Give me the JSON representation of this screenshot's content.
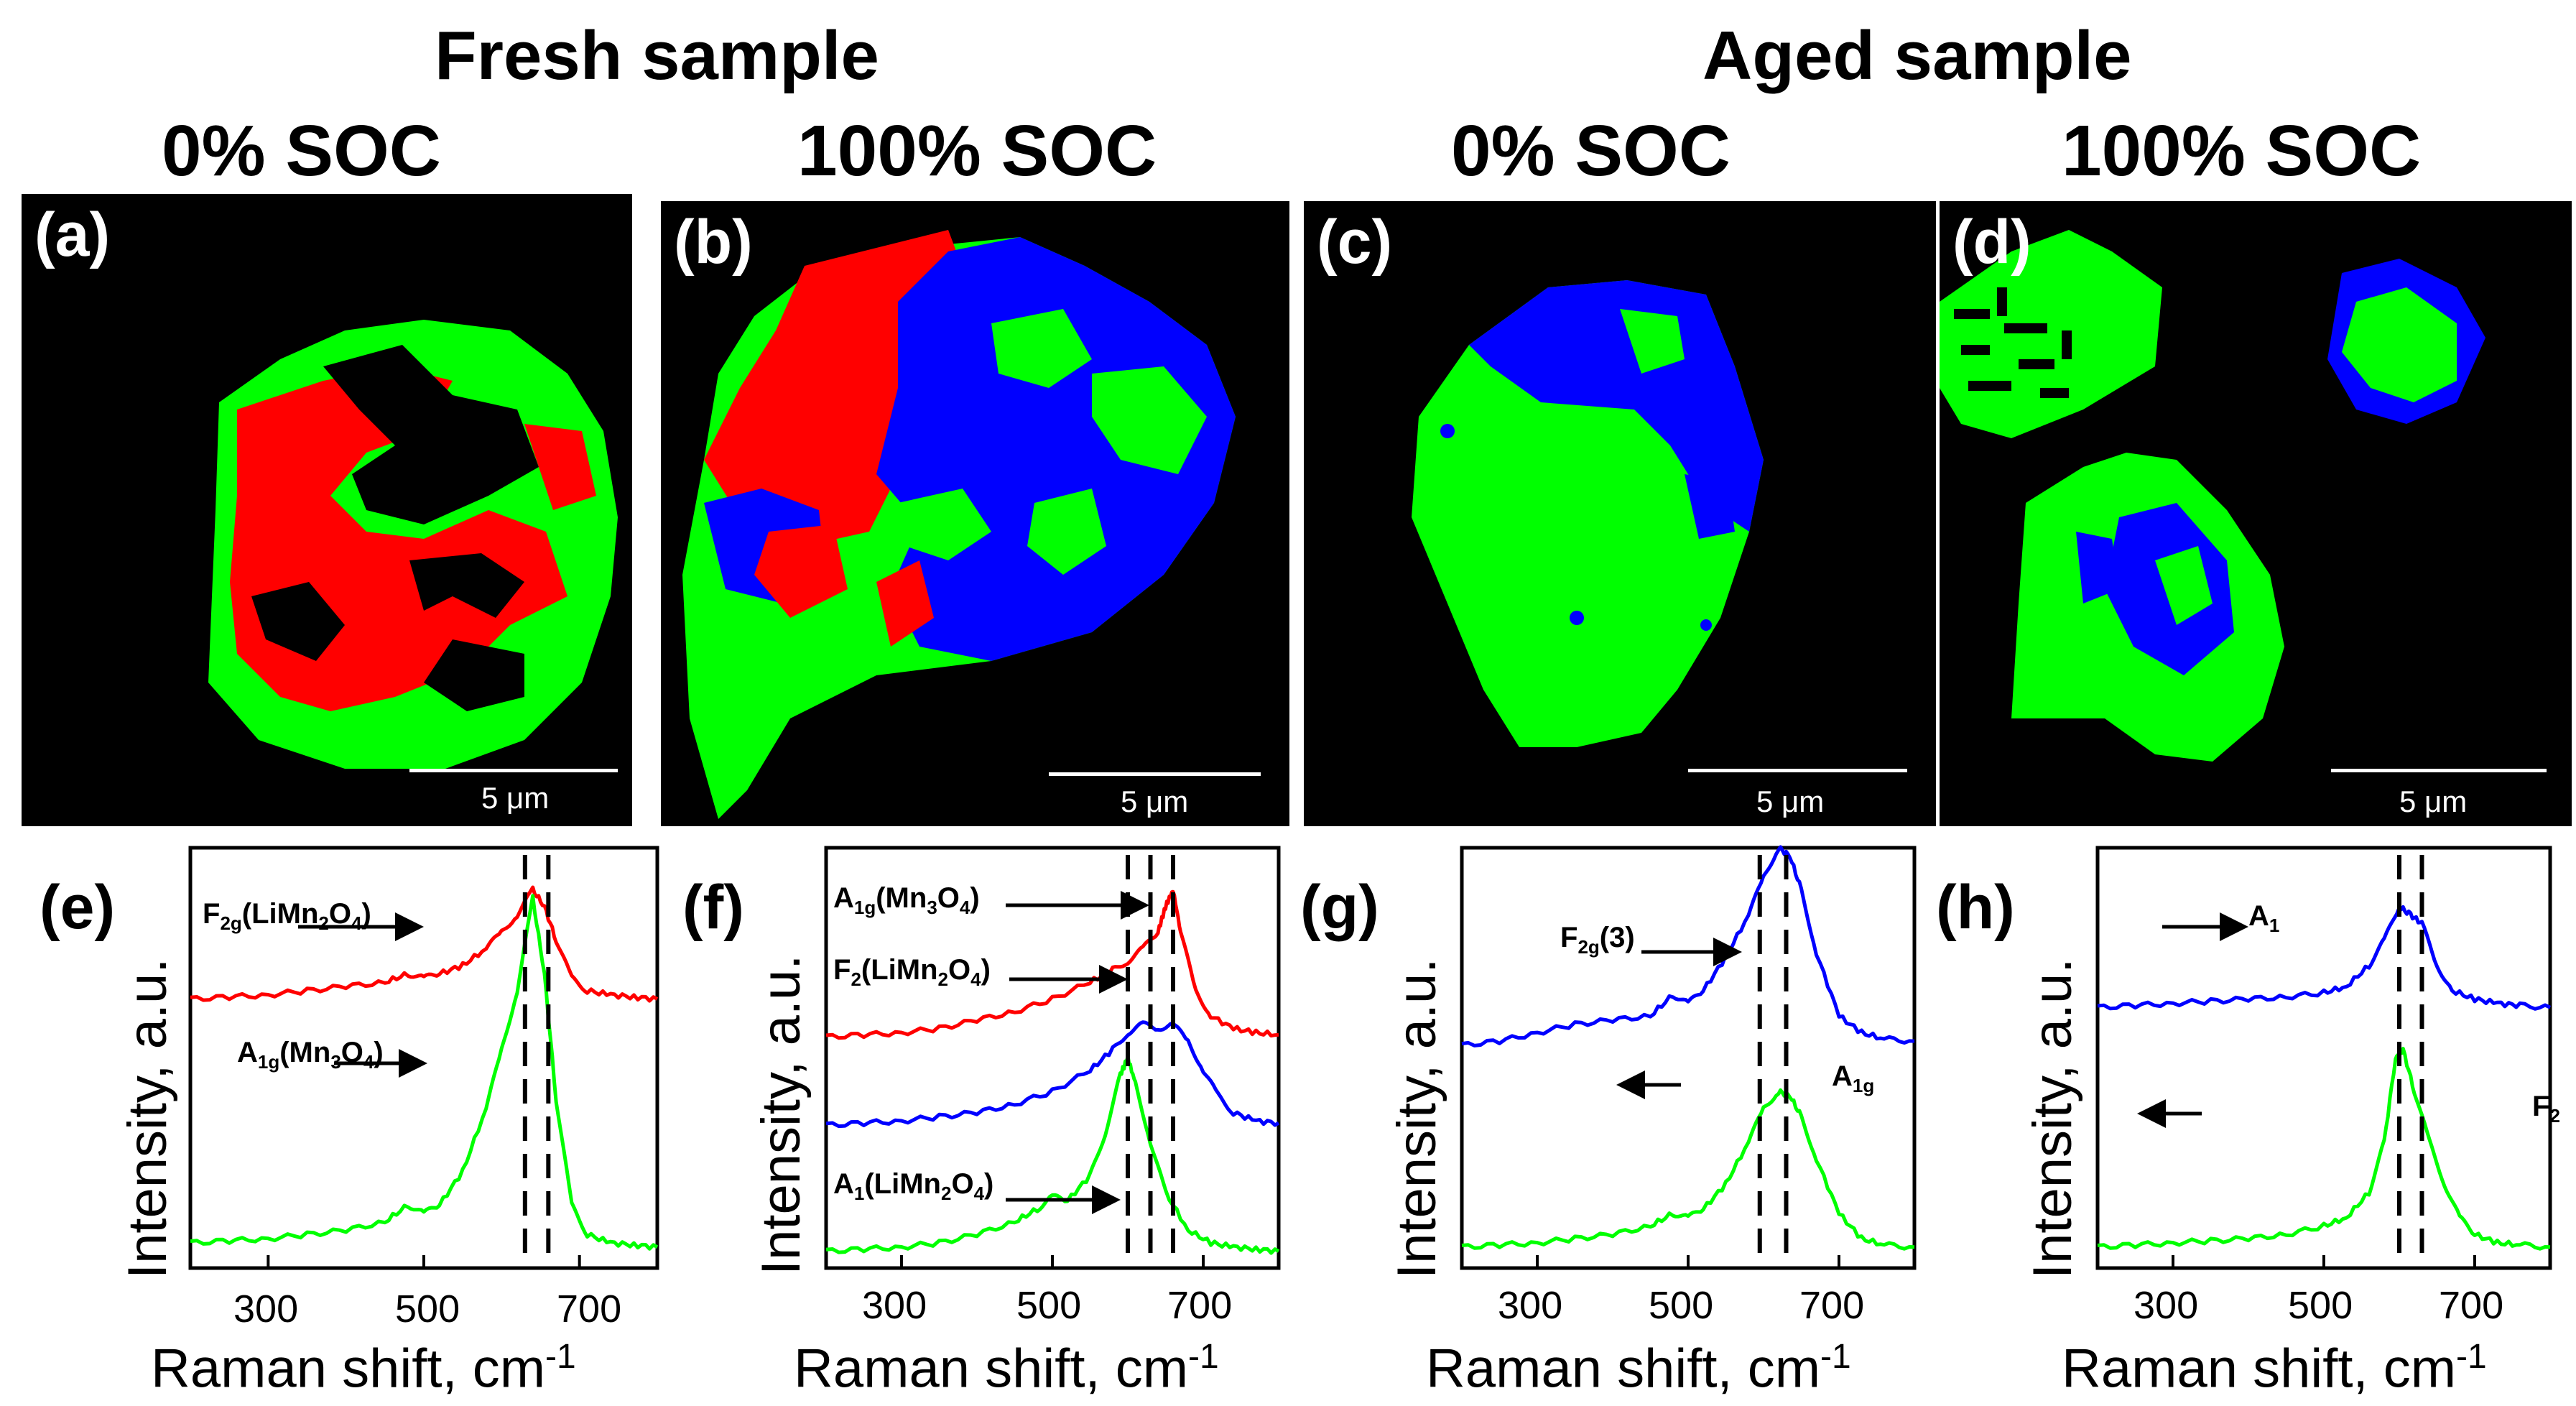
{
  "figure": {
    "fresh_title": "Fresh sample",
    "aged_title": "Aged sample",
    "panels_top": [
      {
        "label": "(a)",
        "soc": "0% SOC",
        "scale": "5 μm"
      },
      {
        "label": "(b)",
        "soc": "100% SOC",
        "scale": "5 μm"
      },
      {
        "label": "(c)",
        "soc": "0% SOC",
        "scale": "5 μm"
      },
      {
        "label": "(d)",
        "soc": "100% SOC",
        "scale": "5 μm"
      }
    ],
    "panels_bottom": [
      {
        "label": "(e)",
        "ylabel": "Intensity, a.u.",
        "xlabel": "Raman shift, cm",
        "xlabel_sup": "-1",
        "ticks": [
          "300",
          "500",
          "700"
        ]
      },
      {
        "label": "(f)",
        "ylabel": "Intensity, a.u.",
        "xlabel": "Raman shift, cm",
        "xlabel_sup": "-1",
        "ticks": [
          "300",
          "500",
          "700"
        ]
      },
      {
        "label": "(g)",
        "ylabel": "Intensity, a.u.",
        "xlabel": "Raman shift, cm",
        "xlabel_sup": "-1",
        "ticks": [
          "300",
          "500",
          "700"
        ]
      },
      {
        "label": "(h)",
        "ylabel": "Intensity, a.u.",
        "xlabel": "Raman shift, cm",
        "xlabel_sup": "-1",
        "ticks": [
          "300",
          "500",
          "700"
        ]
      }
    ],
    "annotations": {
      "e1": {
        "main": "F",
        "sub": "2g",
        "rest": "(LiMn",
        "sub2": "2",
        "rest2": "O",
        "sub3": "4",
        "rest3": ")"
      },
      "e2": {
        "main": "A",
        "sub": "1g",
        "rest": "(Mn",
        "sub2": "3",
        "rest2": "O",
        "sub3": "4",
        "rest3": ")"
      },
      "f1": {
        "main": "A",
        "sub": "1g",
        "rest": "(Mn",
        "sub2": "3",
        "rest2": "O",
        "sub3": "4",
        "rest3": ")"
      },
      "f2": {
        "main": "F",
        "sub": "2",
        "rest": "(LiMn",
        "sub2": "2",
        "rest2": "O",
        "sub3": "4",
        "rest3": ")"
      },
      "f3": {
        "main": "A",
        "sub": "1",
        "rest": "(LiMn",
        "sub2": "2",
        "rest2": "O",
        "sub3": "4",
        "rest3": ")"
      },
      "g1": {
        "main": "F",
        "sub": "2g",
        "rest": "(3)",
        "sub2": "",
        "rest2": "",
        "sub3": "",
        "rest3": ""
      },
      "g2": {
        "main": "A",
        "sub": "1g",
        "rest": "",
        "sub2": "",
        "rest2": "",
        "sub3": "",
        "rest3": ""
      },
      "h1": {
        "main": "A",
        "sub": "1",
        "rest": "",
        "sub2": "",
        "rest2": "",
        "sub3": "",
        "rest3": ""
      },
      "h2": {
        "main": "F",
        "sub": "2",
        "rest": "",
        "sub2": "",
        "rest2": "",
        "sub3": "",
        "rest3": ""
      }
    },
    "colors": {
      "red": "#ff0000",
      "green": "#00ff00",
      "blue": "#0000ff",
      "black": "#000000"
    }
  },
  "chart_data": [
    {
      "type": "line",
      "panel": "(e)",
      "xlabel": "Raman shift, cm-1",
      "ylabel": "Intensity, a.u.",
      "xlim": [
        200,
        800
      ],
      "series": [
        {
          "name": "red",
          "color": "#ff0000",
          "x": [
            200,
            250,
            300,
            350,
            400,
            450,
            480,
            500,
            520,
            550,
            580,
            600,
            620,
            640,
            655,
            670,
            690,
            710,
            740,
            770,
            800
          ],
          "y": [
            0.64,
            0.645,
            0.65,
            0.66,
            0.67,
            0.68,
            0.7,
            0.69,
            0.7,
            0.72,
            0.76,
            0.8,
            0.84,
            0.9,
            0.86,
            0.78,
            0.69,
            0.66,
            0.65,
            0.645,
            0.64
          ]
        },
        {
          "name": "green",
          "color": "#00ff00",
          "x": [
            200,
            250,
            300,
            350,
            400,
            450,
            480,
            500,
            520,
            550,
            580,
            600,
            620,
            640,
            655,
            670,
            690,
            710,
            740,
            770,
            800
          ],
          "y": [
            0.06,
            0.065,
            0.07,
            0.08,
            0.09,
            0.11,
            0.15,
            0.13,
            0.15,
            0.23,
            0.38,
            0.52,
            0.66,
            0.88,
            0.7,
            0.4,
            0.15,
            0.08,
            0.06,
            0.055,
            0.05
          ]
        }
      ],
      "dashes": [
        630,
        660
      ]
    },
    {
      "type": "line",
      "panel": "(f)",
      "xlabel": "Raman shift, cm-1",
      "ylabel": "Intensity, a.u.",
      "xlim": [
        200,
        800
      ],
      "series": [
        {
          "name": "red",
          "color": "#ff0000",
          "x": [
            200,
            250,
            300,
            350,
            400,
            450,
            500,
            550,
            580,
            600,
            620,
            640,
            650,
            660,
            670,
            690,
            710,
            740,
            770,
            800
          ],
          "y": [
            0.55,
            0.555,
            0.56,
            0.57,
            0.59,
            0.61,
            0.64,
            0.68,
            0.71,
            0.73,
            0.76,
            0.8,
            0.86,
            0.9,
            0.8,
            0.66,
            0.6,
            0.57,
            0.56,
            0.555
          ]
        },
        {
          "name": "blue",
          "color": "#0000ff",
          "x": [
            200,
            250,
            300,
            350,
            400,
            450,
            500,
            550,
            580,
            600,
            620,
            640,
            660,
            680,
            700,
            720,
            740,
            770,
            800
          ],
          "y": [
            0.34,
            0.345,
            0.35,
            0.36,
            0.37,
            0.39,
            0.42,
            0.47,
            0.52,
            0.56,
            0.58,
            0.57,
            0.58,
            0.54,
            0.47,
            0.41,
            0.37,
            0.35,
            0.345
          ]
        },
        {
          "name": "green",
          "color": "#00ff00",
          "x": [
            200,
            250,
            300,
            350,
            400,
            450,
            480,
            500,
            520,
            550,
            570,
            590,
            600,
            610,
            630,
            650,
            680,
            710,
            740,
            770,
            800
          ],
          "y": [
            0.04,
            0.045,
            0.05,
            0.06,
            0.08,
            0.11,
            0.14,
            0.17,
            0.16,
            0.22,
            0.32,
            0.46,
            0.5,
            0.44,
            0.3,
            0.18,
            0.09,
            0.06,
            0.05,
            0.045,
            0.04
          ]
        }
      ],
      "dashes": [
        600,
        630,
        660
      ]
    },
    {
      "type": "line",
      "panel": "(g)",
      "xlabel": "Raman shift, cm-1",
      "ylabel": "Intensity, a.u.",
      "xlim": [
        200,
        800
      ],
      "series": [
        {
          "name": "blue",
          "color": "#0000ff",
          "x": [
            200,
            250,
            300,
            350,
            400,
            450,
            480,
            500,
            520,
            550,
            580,
            600,
            620,
            635,
            650,
            670,
            700,
            730,
            760,
            800
          ],
          "y": [
            0.53,
            0.54,
            0.56,
            0.58,
            0.59,
            0.6,
            0.65,
            0.63,
            0.66,
            0.74,
            0.84,
            0.93,
            1.0,
            0.98,
            0.9,
            0.75,
            0.6,
            0.56,
            0.545,
            0.54
          ]
        },
        {
          "name": "green",
          "color": "#00ff00",
          "x": [
            200,
            250,
            300,
            350,
            400,
            450,
            480,
            500,
            520,
            550,
            580,
            600,
            620,
            635,
            650,
            670,
            700,
            730,
            760,
            800
          ],
          "y": [
            0.05,
            0.055,
            0.06,
            0.07,
            0.08,
            0.1,
            0.13,
            0.12,
            0.14,
            0.2,
            0.3,
            0.38,
            0.42,
            0.41,
            0.36,
            0.26,
            0.13,
            0.07,
            0.055,
            0.05
          ]
        }
      ],
      "dashes": [
        595,
        630
      ]
    },
    {
      "type": "line",
      "panel": "(h)",
      "xlabel": "Raman shift, cm-1",
      "ylabel": "Intensity, a.u.",
      "xlim": [
        200,
        800
      ],
      "series": [
        {
          "name": "blue",
          "color": "#0000ff",
          "x": [
            200,
            250,
            300,
            350,
            400,
            450,
            500,
            530,
            560,
            580,
            600,
            615,
            630,
            650,
            670,
            700,
            730,
            760,
            800
          ],
          "y": [
            0.62,
            0.625,
            0.63,
            0.635,
            0.64,
            0.645,
            0.655,
            0.67,
            0.72,
            0.78,
            0.86,
            0.84,
            0.82,
            0.72,
            0.66,
            0.64,
            0.63,
            0.625,
            0.62
          ]
        },
        {
          "name": "green",
          "color": "#00ff00",
          "x": [
            200,
            250,
            300,
            350,
            400,
            450,
            500,
            530,
            560,
            580,
            595,
            605,
            620,
            640,
            660,
            680,
            700,
            730,
            760,
            800
          ],
          "y": [
            0.05,
            0.055,
            0.06,
            0.065,
            0.07,
            0.08,
            0.1,
            0.12,
            0.18,
            0.3,
            0.5,
            0.52,
            0.42,
            0.3,
            0.2,
            0.12,
            0.08,
            0.06,
            0.055,
            0.05
          ]
        }
      ],
      "dashes": [
        600,
        630
      ]
    }
  ]
}
